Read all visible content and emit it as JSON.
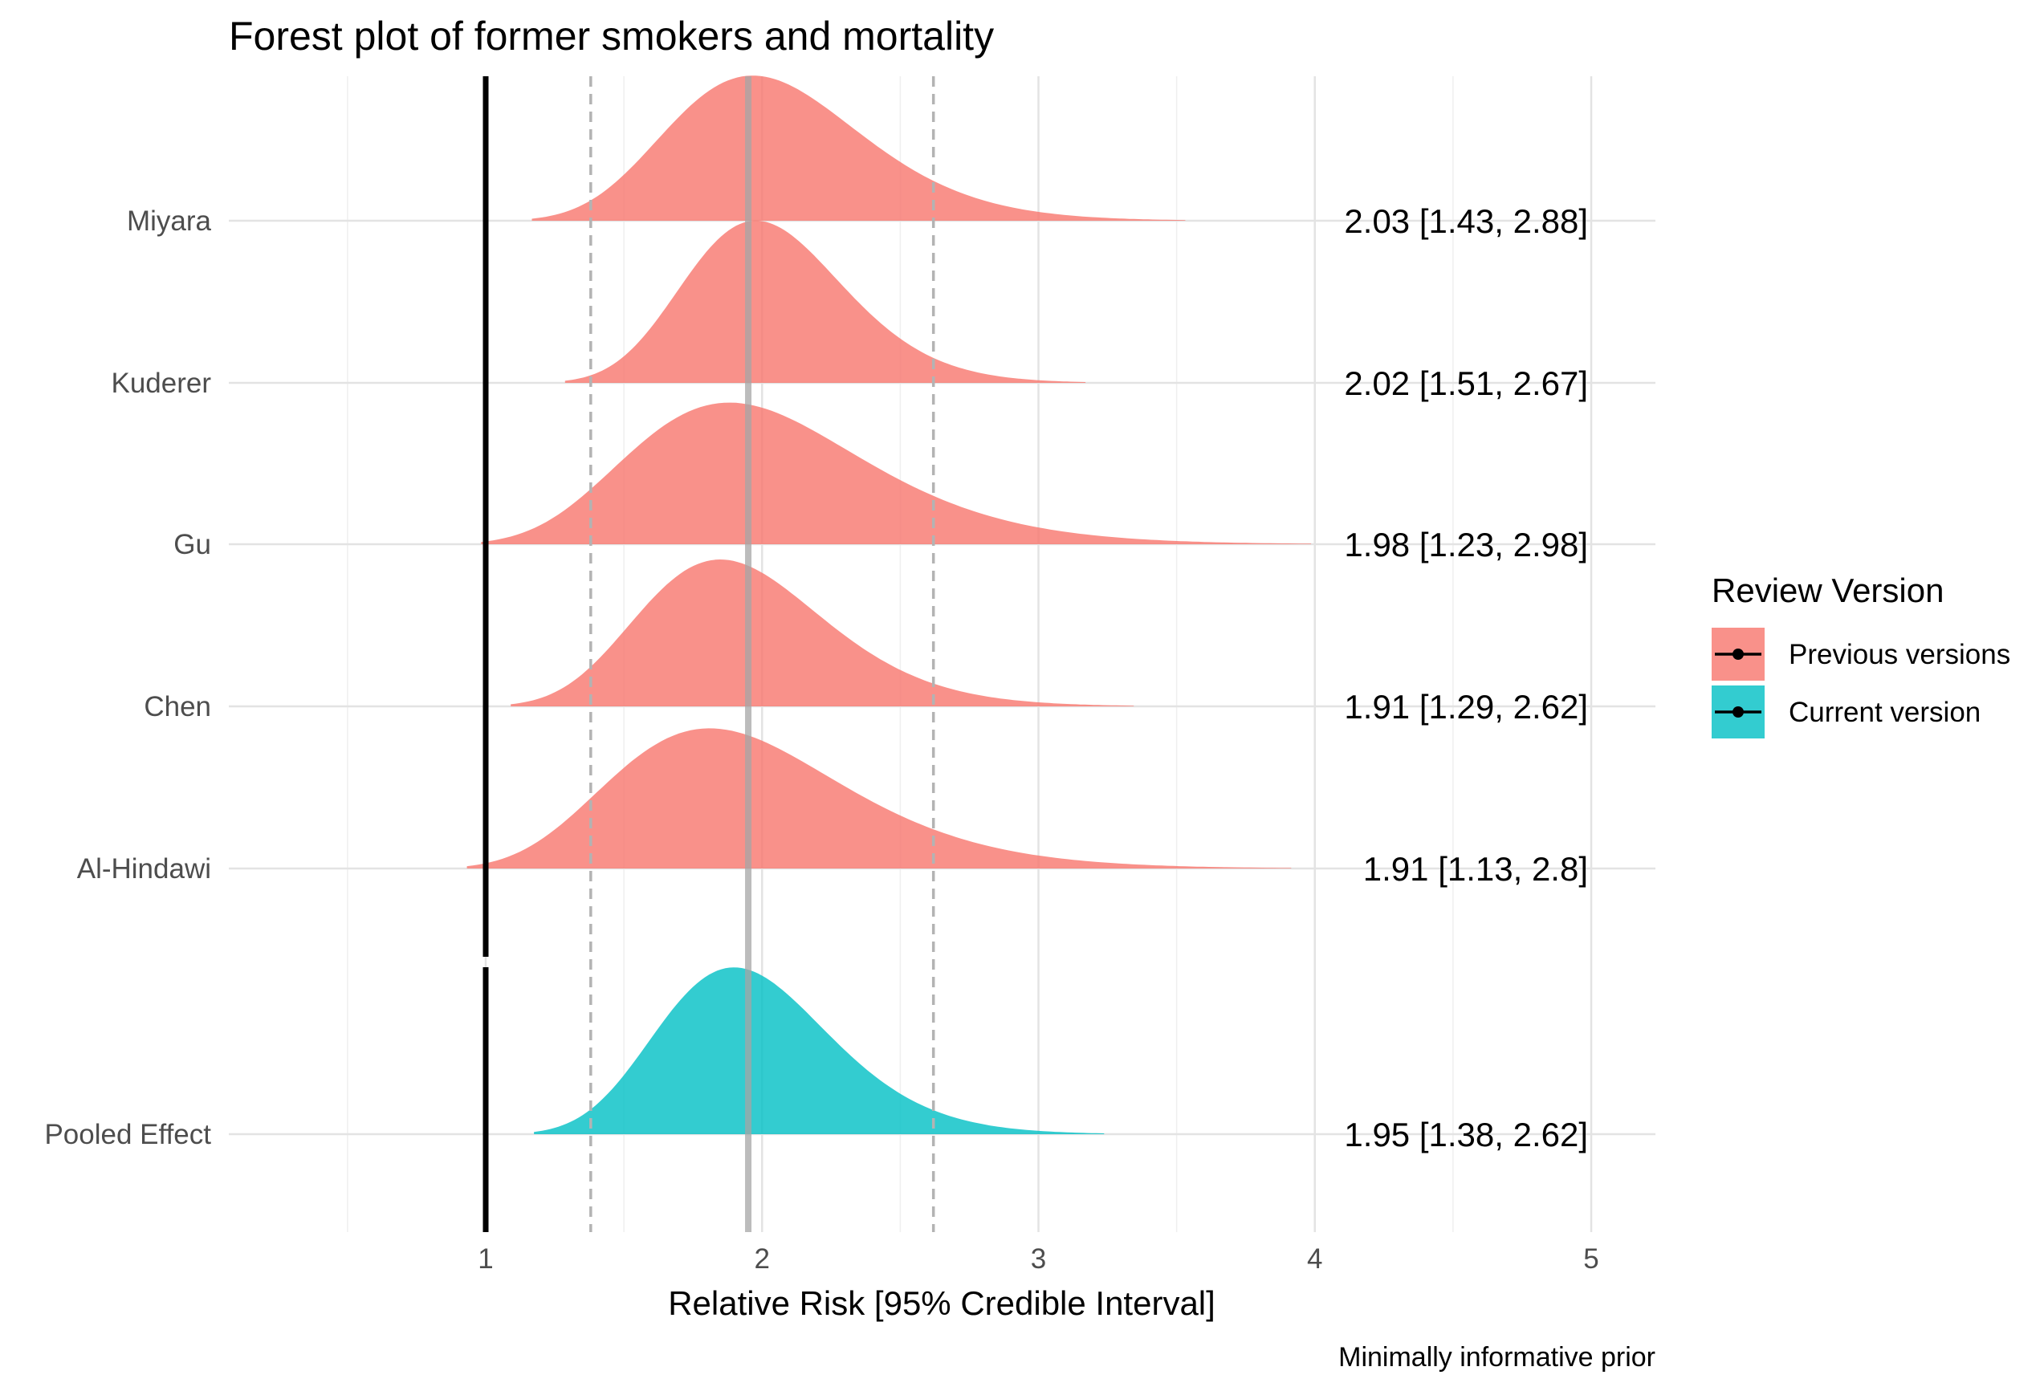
{
  "chart_data": {
    "type": "area",
    "title": "Forest plot of former smokers and mortality",
    "xlabel": "Relative Risk [95% Credible Interval]",
    "ylabel": "",
    "caption": "Minimally informative prior",
    "xlim": [
      0.1,
      5.25
    ],
    "x_ticks": [
      1,
      2,
      3,
      4,
      5
    ],
    "x_tick_labels": [
      "1",
      "2",
      "3",
      "4",
      "5"
    ],
    "grid": true,
    "null_line": 1,
    "pooled_estimate": 1.95,
    "pooled_interval": [
      1.38,
      2.62
    ],
    "legend": {
      "title": "Review Version",
      "position": "right",
      "entries": [
        {
          "label": "Previous versions",
          "color": "#F8766D"
        },
        {
          "label": "Current version",
          "color": "#00BFC4"
        }
      ]
    },
    "series": [
      {
        "name": "Miyara",
        "version": "Previous versions",
        "estimate": 2.03,
        "lower": 1.43,
        "upper": 2.88,
        "label": "2.03 [1.43, 2.88]"
      },
      {
        "name": "Kuderer",
        "version": "Previous versions",
        "estimate": 2.02,
        "lower": 1.51,
        "upper": 2.67,
        "label": "2.02 [1.51, 2.67]"
      },
      {
        "name": "Gu",
        "version": "Previous versions",
        "estimate": 1.98,
        "lower": 1.23,
        "upper": 2.98,
        "label": "1.98 [1.23, 2.98]"
      },
      {
        "name": "Chen",
        "version": "Previous versions",
        "estimate": 1.91,
        "lower": 1.29,
        "upper": 2.62,
        "label": "1.91 [1.29, 2.62]"
      },
      {
        "name": "Al-Hindawi",
        "version": "Previous versions",
        "estimate": 1.91,
        "lower": 1.13,
        "upper": 2.8,
        "label": "1.91 [1.13, 2.8]"
      },
      {
        "name": "Pooled Effect",
        "version": "Current version",
        "estimate": 1.95,
        "lower": 1.38,
        "upper": 2.62,
        "label": "1.95 [1.38, 2.62]"
      }
    ]
  }
}
